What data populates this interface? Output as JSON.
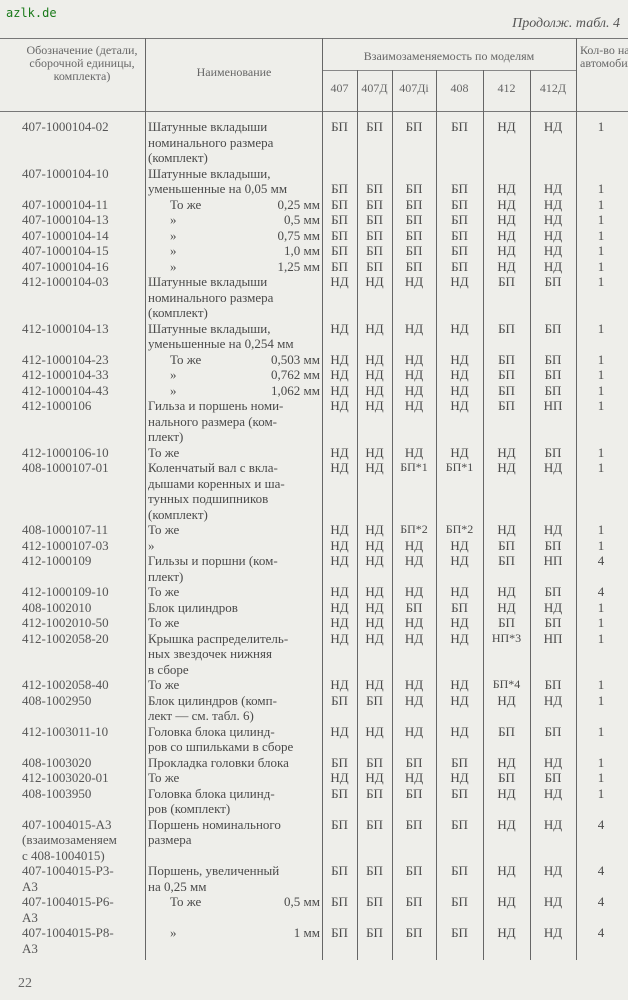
{
  "watermark": "azlk.de",
  "continuation": "Продолж. табл. 4",
  "header": {
    "code": "Обозначение (детали, сборочной единицы, комплекта)",
    "name": "Наименование",
    "interchange": "Взаимозаменяемость по моделям",
    "models": [
      "407",
      "407Д",
      "407Дi",
      "408",
      "412",
      "412Д"
    ],
    "qty": "Кол-во на автомобиль"
  },
  "rows": [
    {
      "code": [
        "407-1000104-02"
      ],
      "name": [
        "Шатунные вкладыши",
        "номинального размера",
        "(комплект)"
      ],
      "values": [
        "БП",
        "БП",
        "БП",
        "БП",
        "НД",
        "НД"
      ],
      "qty": "1"
    },
    {
      "code": [
        "407-1000104-10"
      ],
      "name": [
        "Шатунные вкладыши,",
        "уменьшенные на 0,05 мм"
      ],
      "values": [
        "БП",
        "БП",
        "БП",
        "БП",
        "НД",
        "НД"
      ],
      "qty": "1"
    },
    {
      "code": [
        "407-1000104-11"
      ],
      "name": [
        "То же"
      ],
      "size": "0,25 мм",
      "values": [
        "БП",
        "БП",
        "БП",
        "БП",
        "НД",
        "НД"
      ],
      "qty": "1"
    },
    {
      "code": [
        "407-1000104-13"
      ],
      "name": [
        "»"
      ],
      "size": "0,5 мм",
      "values": [
        "БП",
        "БП",
        "БП",
        "БП",
        "НД",
        "НД"
      ],
      "qty": "1"
    },
    {
      "code": [
        "407-1000104-14"
      ],
      "name": [
        "»"
      ],
      "size": "0,75 мм",
      "values": [
        "БП",
        "БП",
        "БП",
        "БП",
        "НД",
        "НД"
      ],
      "qty": "1"
    },
    {
      "code": [
        "407-1000104-15"
      ],
      "name": [
        "»"
      ],
      "size": "1,0 мм",
      "values": [
        "БП",
        "БП",
        "БП",
        "БП",
        "НД",
        "НД"
      ],
      "qty": "1"
    },
    {
      "code": [
        "407-1000104-16"
      ],
      "name": [
        "»"
      ],
      "size": "1,25 мм",
      "values": [
        "БП",
        "БП",
        "БП",
        "БП",
        "НД",
        "НД"
      ],
      "qty": "1"
    },
    {
      "code": [
        "412-1000104-03"
      ],
      "name": [
        "Шатунные вкладыши",
        "номинального размера",
        "(комплект)"
      ],
      "values": [
        "НД",
        "НД",
        "НД",
        "НД",
        "БП",
        "БП"
      ],
      "qty": "1"
    },
    {
      "code": [
        "412-1000104-13"
      ],
      "name": [
        "Шатунные вкладыши,",
        "уменьшенные на 0,254 мм"
      ],
      "values": [
        "НД",
        "НД",
        "НД",
        "НД",
        "БП",
        "БП"
      ],
      "qty": "1"
    },
    {
      "code": [
        "412-1000104-23"
      ],
      "name": [
        "То же"
      ],
      "size": "0,503 мм",
      "values": [
        "НД",
        "НД",
        "НД",
        "НД",
        "БП",
        "БП"
      ],
      "qty": "1"
    },
    {
      "code": [
        "412-1000104-33"
      ],
      "name": [
        "»"
      ],
      "size": "0,762 мм",
      "values": [
        "НД",
        "НД",
        "НД",
        "НД",
        "БП",
        "БП"
      ],
      "qty": "1"
    },
    {
      "code": [
        "412-1000104-43"
      ],
      "name": [
        "»"
      ],
      "size": "1,062 мм",
      "values": [
        "НД",
        "НД",
        "НД",
        "НД",
        "БП",
        "БП"
      ],
      "qty": "1"
    },
    {
      "code": [
        "412-1000106"
      ],
      "name": [
        "Гильза и поршень номи-",
        "нального размера (ком-",
        "плект)"
      ],
      "values": [
        "НД",
        "НД",
        "НД",
        "НД",
        "БП",
        "НП"
      ],
      "qty": "1"
    },
    {
      "code": [
        "412-1000106-10"
      ],
      "name": [
        "То же"
      ],
      "values": [
        "НД",
        "НД",
        "НД",
        "НД",
        "НД",
        "БП"
      ],
      "qty": "1"
    },
    {
      "code": [
        "408-1000107-01"
      ],
      "name": [
        "Коленчатый вал с вкла-",
        "дышами коренных и ша-",
        "тунных подшипников",
        "(комплект)"
      ],
      "values": [
        "НД",
        "НД",
        "БП*1",
        "БП*1",
        "НД",
        "НД"
      ],
      "qty": "1"
    },
    {
      "code": [
        "408-1000107-11"
      ],
      "name": [
        "То же"
      ],
      "values": [
        "НД",
        "НД",
        "БП*2",
        "БП*2",
        "НД",
        "НД"
      ],
      "qty": "1"
    },
    {
      "code": [
        "412-1000107-03"
      ],
      "name": [
        "»"
      ],
      "values": [
        "НД",
        "НД",
        "НД",
        "НД",
        "БП",
        "БП"
      ],
      "qty": "1"
    },
    {
      "code": [
        "412-1000109"
      ],
      "name": [
        "Гильзы и поршни (ком-",
        "плект)"
      ],
      "values": [
        "НД",
        "НД",
        "НД",
        "НД",
        "БП",
        "НП"
      ],
      "qty": "4"
    },
    {
      "code": [
        "412-1000109-10"
      ],
      "name": [
        "То же"
      ],
      "values": [
        "НД",
        "НД",
        "НД",
        "НД",
        "НД",
        "БП"
      ],
      "qty": "4"
    },
    {
      "code": [
        "408-1002010"
      ],
      "name": [
        "Блок цилиндров"
      ],
      "values": [
        "НД",
        "НД",
        "БП",
        "БП",
        "НД",
        "НД"
      ],
      "qty": "1"
    },
    {
      "code": [
        "412-1002010-50"
      ],
      "name": [
        "То же"
      ],
      "values": [
        "НД",
        "НД",
        "НД",
        "НД",
        "БП",
        "БП"
      ],
      "qty": "1"
    },
    {
      "code": [
        "412-1002058-20"
      ],
      "name": [
        "Крышка распределитель-",
        "ных звездочек нижняя",
        "в сборе"
      ],
      "values": [
        "НД",
        "НД",
        "НД",
        "НД",
        "НП*3",
        "НП"
      ],
      "qty": "1"
    },
    {
      "code": [
        "412-1002058-40"
      ],
      "name": [
        "То же"
      ],
      "values": [
        "НД",
        "НД",
        "НД",
        "НД",
        "БП*4",
        "БП"
      ],
      "qty": "1"
    },
    {
      "code": [
        "408-1002950"
      ],
      "name": [
        "Блок цилиндров (комп-",
        "лект — см. табл. 6)"
      ],
      "values": [
        "БП",
        "БП",
        "НД",
        "НД",
        "НД",
        "НД"
      ],
      "qty": "1"
    },
    {
      "code": [
        "412-1003011-10"
      ],
      "name": [
        "Головка блока цилинд-",
        "ров со шпильками в сборе"
      ],
      "values": [
        "НД",
        "НД",
        "НД",
        "НД",
        "БП",
        "БП"
      ],
      "qty": "1"
    },
    {
      "code": [
        "408-1003020"
      ],
      "name": [
        "Прокладка головки блока"
      ],
      "values": [
        "БП",
        "БП",
        "БП",
        "БП",
        "НД",
        "НД"
      ],
      "qty": "1"
    },
    {
      "code": [
        "412-1003020-01"
      ],
      "name": [
        "То же"
      ],
      "values": [
        "НД",
        "НД",
        "НД",
        "НД",
        "БП",
        "БП"
      ],
      "qty": "1"
    },
    {
      "code": [
        "408-1003950"
      ],
      "name": [
        "Головка блока цилинд-",
        "ров (комплект)"
      ],
      "values": [
        "БП",
        "БП",
        "БП",
        "БП",
        "НД",
        "НД"
      ],
      "qty": "1"
    },
    {
      "code": [
        "407-1004015-А3",
        "(взаимозаменяем",
        "с 408-1004015)"
      ],
      "name": [
        "Поршень номинального",
        "размера"
      ],
      "values": [
        "БП",
        "БП",
        "БП",
        "БП",
        "НД",
        "НД"
      ],
      "qty": "4"
    },
    {
      "code": [
        "407-1004015-Р3-",
        "А3"
      ],
      "name": [
        "Поршень, увеличенный",
        "на 0,25 мм"
      ],
      "values": [
        "БП",
        "БП",
        "БП",
        "БП",
        "НД",
        "НД"
      ],
      "qty": "4"
    },
    {
      "code": [
        "407-1004015-Р6-",
        "А3"
      ],
      "name": [
        "То же"
      ],
      "size": "0,5 мм",
      "values": [
        "БП",
        "БП",
        "БП",
        "БП",
        "НД",
        "НД"
      ],
      "qty": "4"
    },
    {
      "code": [
        "407-1004015-Р8-",
        "А3"
      ],
      "name": [
        "»"
      ],
      "size": "1 мм",
      "values": [
        "БП",
        "БП",
        "БП",
        "БП",
        "НД",
        "НД"
      ],
      "qty": "4"
    }
  ],
  "page_number": "22"
}
